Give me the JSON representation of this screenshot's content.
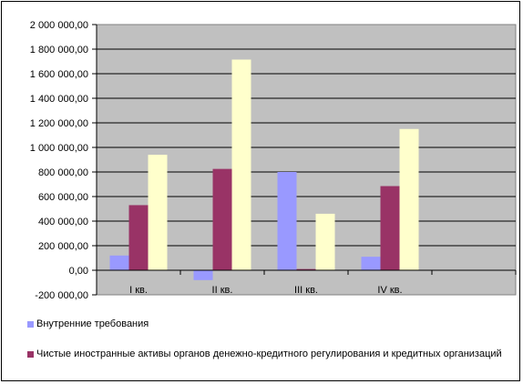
{
  "chart_data": {
    "type": "bar",
    "categories": [
      "I кв.",
      "II кв.",
      "III кв.",
      "IV кв.",
      ""
    ],
    "series": [
      {
        "name": "Внутренние требования",
        "color": "#9999ff",
        "values": [
          120000,
          -80000,
          800000,
          110000,
          null
        ]
      },
      {
        "name": "Чистые иностранные активы органов денежно-кредитного регулирования и кредитных организаций",
        "color": "#993366",
        "values": [
          530000,
          825000,
          10000,
          685000,
          null
        ]
      },
      {
        "name": "",
        "color": "#ffffcc",
        "values": [
          940000,
          1715000,
          460000,
          1150000,
          null
        ]
      }
    ],
    "yticks": [
      "-200 000,00",
      "0,00",
      "200 000,00",
      "400 000,00",
      "600 000,00",
      "800 000,00",
      "1 000 000,00",
      "1 200 000,00",
      "1 400 000,00",
      "1 600 000,00",
      "1 800 000,00",
      "2 000 000,00"
    ],
    "ylim": [
      -200000,
      2000000
    ],
    "grid": true,
    "plot_background": "#c0c0c0",
    "legend_position": "bottom"
  }
}
